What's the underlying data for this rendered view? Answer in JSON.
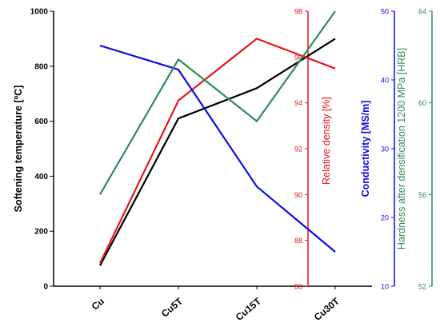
{
  "chart_data": {
    "type": "line",
    "categories": [
      "Cu",
      "Cu5T",
      "Cu15T",
      "Cu30T"
    ],
    "axes": [
      {
        "id": "softening",
        "label": "Softening temperature [ºC]",
        "color": "#000000",
        "min": 0,
        "max": 1000,
        "ticks": [
          "0",
          "200",
          "400",
          "600",
          "800",
          "1000"
        ]
      },
      {
        "id": "density",
        "label": "Relative density [%]",
        "color": "#e8141b",
        "min": 86,
        "max": 98,
        "ticks": [
          "86",
          "88",
          "90",
          "92",
          "94",
          "96",
          "98"
        ]
      },
      {
        "id": "conductivity",
        "label": "Conductivity [MS/m]",
        "color": "#0c0ce6",
        "min": 10,
        "max": 50,
        "ticks": [
          "10",
          "20",
          "30",
          "40",
          "50"
        ]
      },
      {
        "id": "hardness",
        "label": "Hardness after densification 1200 MPa [HRB]",
        "color": "#2e8b57",
        "min": 52,
        "max": 64,
        "ticks": [
          "52",
          "56",
          "60",
          "64"
        ]
      }
    ],
    "series": [
      {
        "axis": "softening",
        "color": "#000000",
        "values": [
          75,
          610,
          720,
          900
        ]
      },
      {
        "axis": "density",
        "color": "#e8141b",
        "values": [
          87.0,
          94.1,
          96.8,
          95.5
        ]
      },
      {
        "axis": "conductivity",
        "color": "#0c0ce6",
        "values": [
          45.0,
          41.5,
          24.5,
          15.0
        ]
      },
      {
        "axis": "hardness",
        "color": "#2e8b57",
        "values": [
          56.0,
          61.9,
          59.2,
          64.0
        ]
      }
    ]
  }
}
